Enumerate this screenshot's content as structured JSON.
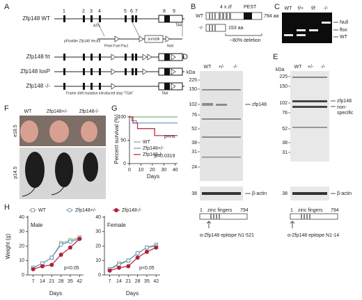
{
  "panels": {
    "labels": [
      "A",
      "B",
      "C",
      "D",
      "E",
      "F",
      "G",
      "H"
    ]
  },
  "panel_a": {
    "exons": [
      "1",
      "2",
      "3",
      "4",
      "5",
      "6",
      "7",
      "8",
      "9"
    ],
    "rows": [
      "Zfp148 WT",
      "Zfp148 frt",
      "Zfp148 loxP",
      "Zfp148 -/-"
    ],
    "atg": "ATG",
    "taa": "TAA",
    "vector": "pFloxible Zfp148 Vector",
    "sites": "PmeI FseI PacI",
    "cassette": "puro∆tk",
    "notI": "NotI",
    "mutation": "Frame shift mutation introduced stop \"TGA\"",
    "taa2": "TAA"
  },
  "panel_b": {
    "rows": [
      "WT",
      "-/-"
    ],
    "zf": "4 x zf",
    "pest": "PEST",
    "lengths": [
      "794 aa",
      "153 aa"
    ],
    "deletion": "~80% deletion"
  },
  "panel_c": {
    "lanes": [
      "WT",
      "f/+",
      "f/f",
      "-/-"
    ],
    "bands": [
      "Null",
      "flox",
      "WT"
    ]
  },
  "panel_d": {
    "kda": "kDa",
    "lanes": [
      "WT",
      "+/-",
      "-/-"
    ],
    "ladder": [
      225,
      150,
      102,
      76,
      52,
      38,
      31,
      24
    ],
    "actin_ladder": 38,
    "arrows": [
      "zfp148",
      "β-actin"
    ],
    "start": "1",
    "domain": "zinc fingers",
    "end": "794",
    "epitope": "α-Zfp148 epitope N1-521"
  },
  "panel_e": {
    "kda": "kDa",
    "lanes": [
      "WT",
      "+/-",
      "-/-"
    ],
    "ladder": [
      225,
      150,
      102,
      76,
      52,
      38,
      31
    ],
    "actin_ladder": 38,
    "arrows": [
      "zfp148",
      "β-actin"
    ],
    "nonspecific": [
      "non-",
      "specific"
    ],
    "start": "1",
    "domain": "zinc fingers",
    "end": "794",
    "epitope": "α-Zfp148 epitope N1-14"
  },
  "panel_f": {
    "columns": [
      "WT",
      "Zfp148+/-",
      "Zfp148-/-"
    ],
    "ages": [
      "e18.5",
      "p14.5"
    ]
  },
  "chart_data": [
    {
      "type": "line",
      "step": true,
      "ylabel": "Percent survival (%)",
      "xlabel": "Days",
      "xlim": [
        0,
        42
      ],
      "xticks": [
        0,
        10,
        20,
        30,
        40
      ],
      "ylim": [
        0,
        100
      ],
      "yticks": [
        0,
        50,
        100
      ],
      "annotations": [
        "p=ns",
        "p=0.0319"
      ],
      "series": [
        {
          "name": "WT",
          "color": "#7fae7f",
          "x": [
            0,
            42
          ],
          "values": [
            100,
            100
          ]
        },
        {
          "name": "Zfp148+/-",
          "color": "#6a8fc0",
          "x": [
            0,
            2,
            6,
            42
          ],
          "values": [
            100,
            92,
            87,
            87
          ]
        },
        {
          "name": "Zfp148-/-",
          "color": "#b0203a",
          "x": [
            0,
            3,
            7,
            22,
            42
          ],
          "values": [
            100,
            87,
            75,
            60,
            60
          ]
        }
      ]
    },
    {
      "type": "line",
      "title": "Male",
      "ylabel": "Weight (g)",
      "xlabel": "Days",
      "x": [
        7,
        14,
        21,
        28,
        35,
        42
      ],
      "xlim": [
        3,
        45
      ],
      "xticks": [
        7,
        14,
        21,
        28,
        35,
        42
      ],
      "ylim": [
        0,
        40
      ],
      "yticks": [
        0,
        10,
        20,
        30,
        40
      ],
      "annotations": [
        "p<0.05"
      ],
      "series": [
        {
          "name": "WT",
          "color": "#7fae7f",
          "marker": "square",
          "filled": false,
          "values": [
            5,
            8,
            12,
            22,
            24,
            26
          ]
        },
        {
          "name": "Zfp148+/-",
          "color": "#6a8fc0",
          "marker": "circle",
          "filled": false,
          "values": [
            5,
            8,
            12,
            21,
            23,
            25
          ]
        },
        {
          "name": "Zfp148-/-",
          "color": "#b0203a",
          "marker": "circle",
          "filled": true,
          "values": [
            4,
            6,
            7,
            14,
            19,
            25
          ]
        }
      ]
    },
    {
      "type": "line",
      "title": "Female",
      "xlabel": "Days",
      "x": [
        7,
        14,
        21,
        28,
        35,
        42
      ],
      "xlim": [
        3,
        45
      ],
      "xticks": [
        7,
        14,
        21,
        28,
        35,
        42
      ],
      "ylim": [
        0,
        40
      ],
      "yticks": [
        0,
        10,
        20,
        30,
        40
      ],
      "annotations": [
        "p<0.05"
      ],
      "series": [
        {
          "color": "#7fae7f",
          "marker": "square",
          "filled": false,
          "values": [
            4,
            8,
            10,
            15,
            19,
            21
          ]
        },
        {
          "color": "#6a8fc0",
          "marker": "circle",
          "filled": false,
          "values": [
            4,
            7,
            10,
            15,
            19,
            20
          ]
        },
        {
          "color": "#b0203a",
          "marker": "circle",
          "filled": true,
          "values": [
            3,
            5,
            6,
            12,
            16,
            19
          ]
        }
      ]
    }
  ]
}
